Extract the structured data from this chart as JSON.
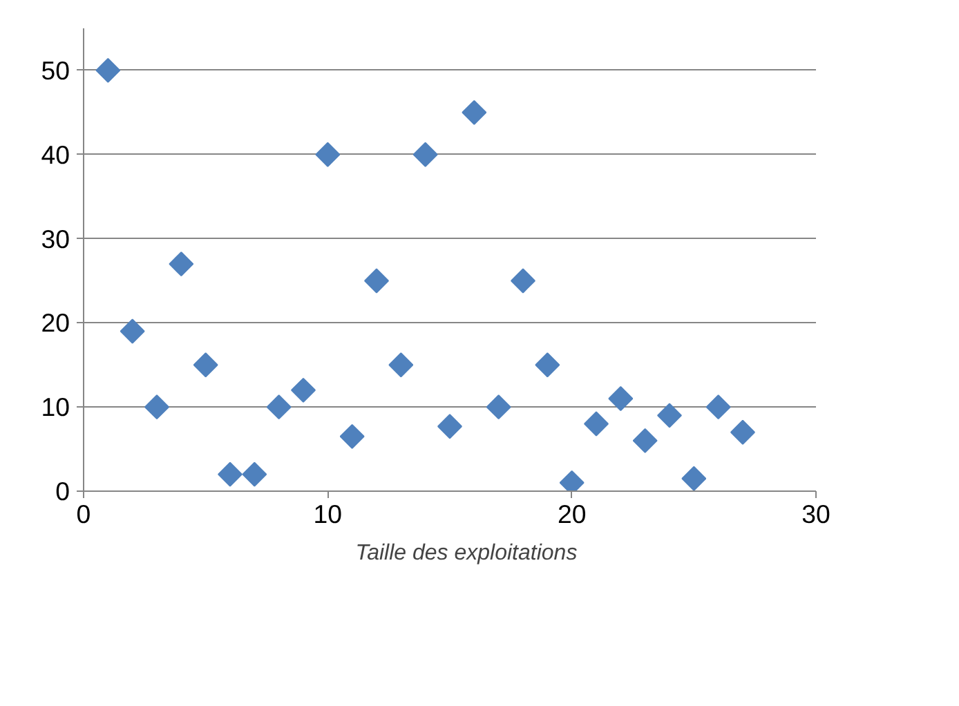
{
  "chart_data": {
    "type": "scatter",
    "marker": "diamond",
    "grid": "y",
    "legend": "bottom",
    "xlim": [
      0,
      30
    ],
    "xticks": [
      0,
      10,
      20,
      30
    ],
    "ylim": [
      0,
      55
    ],
    "yticks": [
      0,
      10,
      20,
      30,
      40,
      50
    ],
    "series": [
      {
        "name": "Taille des exploitations",
        "color": "#4f81bd",
        "x": [
          1,
          2,
          3,
          4,
          5,
          6,
          7,
          8,
          9,
          10,
          11,
          12,
          13,
          14,
          15,
          16,
          17,
          18,
          19,
          20,
          21,
          22,
          23,
          24,
          25,
          26,
          27
        ],
        "values": [
          50,
          19,
          10,
          27,
          15,
          2,
          2,
          10,
          12,
          40,
          6.5,
          25,
          15,
          40,
          7.7,
          45,
          10,
          25,
          15,
          1,
          8,
          11,
          6,
          9,
          1.5,
          10,
          7
        ]
      }
    ]
  }
}
